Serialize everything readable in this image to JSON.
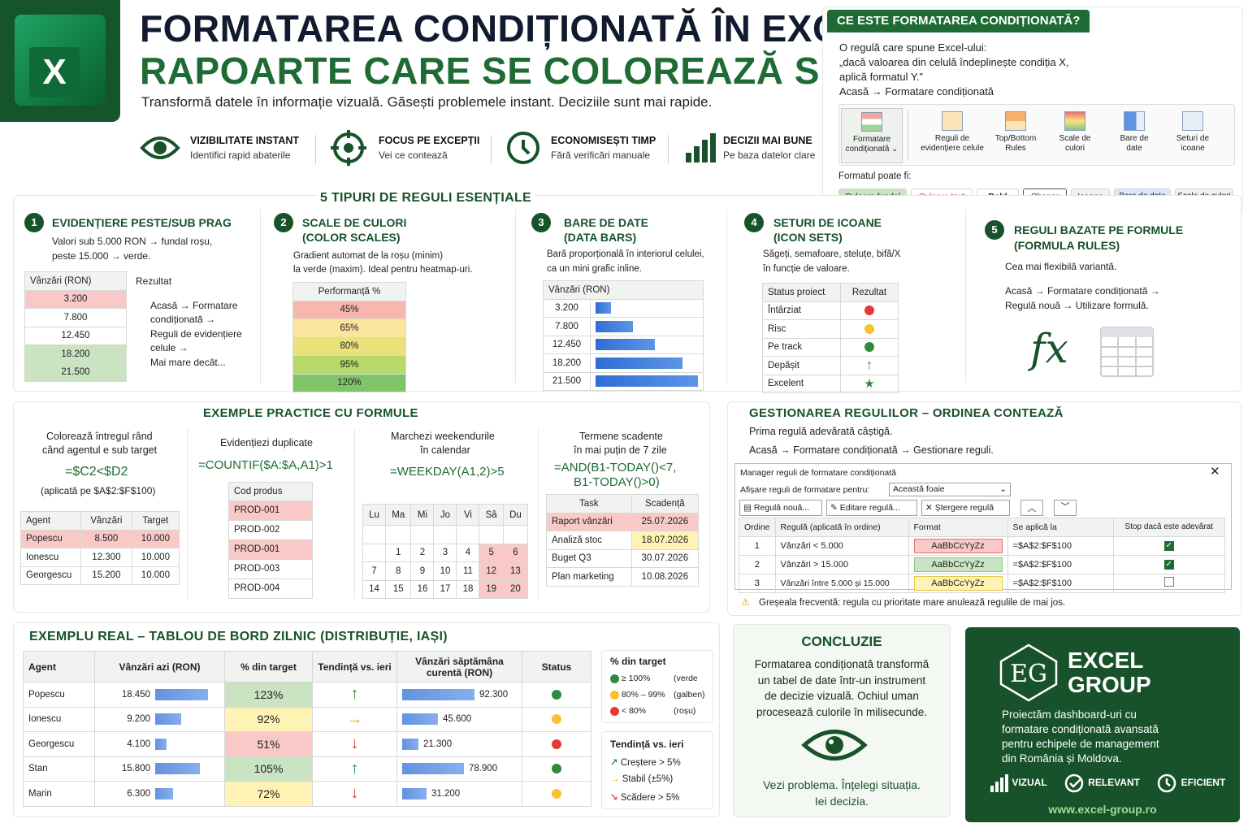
{
  "header": {
    "title_line1": "FORMATAREA CONDIȚIONATĂ ÎN EXCEL:",
    "title_line2": "RAPOARTE CARE SE COLOREAZĂ SINGURE",
    "subtitle": "Transformă datele în informație vizuală. Găsești problemele instant. Deciziile sunt mai rapide.",
    "excel_letter": "X"
  },
  "features": [
    {
      "title": "VIZIBILITATE INSTANT",
      "desc": "Identifici rapid abaterile",
      "icon": "eye-icon"
    },
    {
      "title": "FOCUS PE EXCEPȚII",
      "desc": "Vei ce contează",
      "icon": "target-icon"
    },
    {
      "title": "ECONOMISEȘTI TIMP",
      "desc": "Fără verificări manuale",
      "icon": "clock-icon"
    },
    {
      "title": "DECIZII MAI BUNE",
      "desc": "Pe baza datelor clare",
      "icon": "bar-chart-icon"
    }
  ],
  "what_is": {
    "heading": "CE ESTE FORMATAREA CONDIȚIONATĂ?",
    "line1": "O regulă care spune Excel-ului:",
    "line2": "„dacă valoarea din celulă îndeplinește condiția X,",
    "line3": "aplică formatul Y.”",
    "path": "Acasă → Formatare condiționată",
    "ribbon": [
      {
        "l1": "Formatare",
        "l2": "condiționată ⌄"
      },
      {
        "l1": "Reguli de",
        "l2": "evidențiere celule"
      },
      {
        "l1": "Top/Bottom",
        "l2": "Rules"
      },
      {
        "l1": "Scale de",
        "l2": "culori"
      },
      {
        "l1": "Bare de",
        "l2": "date"
      },
      {
        "l1": "Seturi de",
        "l2": "icoane"
      }
    ],
    "format_label": "Formatul poate fi:",
    "chips": [
      "Culoare fundal",
      "Culoare text",
      "Bold",
      "Chenar",
      "Icoane",
      "Bare de date",
      "Scale de culori"
    ]
  },
  "rules_section": {
    "heading": "5 TIPURI DE REGULI ESENȚIALE",
    "r1": {
      "num": "1",
      "title": "EVIDENȚIERE PESTE/SUB PRAG",
      "d1": "Valori sub 5.000 RON → fundal roșu,",
      "d2": "peste 15.000 → verde.",
      "col1": "Vânzări (RON)",
      "col2": "Rezultat",
      "values": [
        "3.200",
        "7.800",
        "12.450",
        "18.200",
        "21.500"
      ],
      "path1": "Acasă → Formatare",
      "path2": "condiționată →",
      "path3": "Reguli de evidențiere",
      "path4": "celule →",
      "path5": "Mai mare decât..."
    },
    "r2": {
      "num": "2",
      "title1": "SCALE DE CULORI",
      "title2": "(COLOR SCALES)",
      "d1": "Gradient automat de la roșu (minim)",
      "d2": "la verde (maxim). Ideal pentru heatmap-uri.",
      "col": "Performanță %",
      "values": [
        "45%",
        "65%",
        "80%",
        "95%",
        "120%"
      ]
    },
    "r3": {
      "num": "3",
      "title1": "BARE DE DATE",
      "title2": "(DATA BARS)",
      "d1": "Bară proporțională în interiorul celulei,",
      "d2": "ca un mini grafic inline.",
      "col": "Vânzări (RON)",
      "values": [
        "3.200",
        "7.800",
        "12.450",
        "18.200",
        "21.500"
      ],
      "bar_values": [
        3200,
        7800,
        12450,
        18200,
        21500
      ]
    },
    "r4": {
      "num": "4",
      "title1": "SETURI DE ICOANE",
      "title2": "(ICON SETS)",
      "d1": "Săgeți, semafoare, steluțe, bifă/X",
      "d2": "în funcție de valoare.",
      "col1": "Status proiect",
      "col2": "Rezultat",
      "rows": [
        "Întârziat",
        "Risc",
        "Pe track",
        "Depășit",
        "Excelent"
      ]
    },
    "r5": {
      "num": "5",
      "title1": "REGULI BAZATE PE FORMULE",
      "title2": "(FORMULA RULES)",
      "d1": "Cea mai flexibilă variantă.",
      "p1": "Acasă → Formatare condiționată →",
      "p2": "Regulă nouă → Utilizare formulă.",
      "fx": "fx"
    }
  },
  "examples": {
    "heading": "EXEMPLE PRACTICE CU FORMULE",
    "e1": {
      "d1": "Colorează întregul rând",
      "d2": "când agentul e sub target",
      "formula": "=$C2<$D2",
      "applied": "(aplicată pe $A$2:$F$100)",
      "cols": [
        "Agent",
        "Vânzări",
        "Target"
      ],
      "rows": [
        [
          "Popescu",
          "8.500",
          "10.000"
        ],
        [
          "Ionescu",
          "12.300",
          "10.000"
        ],
        [
          "Georgescu",
          "15.200",
          "10.000"
        ]
      ]
    },
    "e2": {
      "d1": "Evidențiezi duplicate",
      "formula": "=COUNTIF($A:$A,A1)>1",
      "col": "Cod produs",
      "rows": [
        "PROD-001",
        "PROD-002",
        "PROD-001",
        "PROD-003",
        "PROD-004"
      ]
    },
    "e3": {
      "d1": "Marchezi weekendurile",
      "d2": "în calendar",
      "formula": "=WEEKDAY(A1,2)>5",
      "days": [
        "Lu",
        "Ma",
        "Mi",
        "Jo",
        "Vi",
        "Sâ",
        "Du"
      ],
      "weeks": [
        [
          "",
          "",
          "",
          "",
          "",
          "",
          ""
        ],
        [
          "",
          "1",
          "2",
          "3",
          "4",
          "5",
          "6"
        ],
        [
          "7",
          "8",
          "9",
          "10",
          "11",
          "12",
          "13"
        ],
        [
          "14",
          "15",
          "16",
          "17",
          "18",
          "19",
          "20"
        ]
      ]
    },
    "e4": {
      "d1": "Termene scadente",
      "d2": "în mai puțin de 7 zile",
      "f1": "=AND(B1-TODAY()<7,",
      "f2": "B1-TODAY()>0)",
      "cols": [
        "Task",
        "Scadență"
      ],
      "rows": [
        [
          "Raport vânzări",
          "25.07.2026"
        ],
        [
          "Analiză stoc",
          "18.07.2026"
        ],
        [
          "Buget Q3",
          "30.07.2026"
        ],
        [
          "Plan marketing",
          "10.08.2026"
        ]
      ]
    }
  },
  "manage": {
    "heading": "GESTIONAREA REGULILOR – ORDINEA CONTEAZĂ",
    "d1": "Prima regulă adevărată câștigă.",
    "d2": "Acasă → Formatare condiționată → Gestionare reguli.",
    "dialog_title": "Manager reguli de formatare condiționată",
    "show_label": "Afișare reguli de formatare pentru:",
    "show_value": "Această foaie",
    "btn_new": "Regulă nouă...",
    "btn_edit": "Editare regulă...",
    "btn_delete": "Ștergere regulă",
    "cols": [
      "Ordine",
      "Regulă (aplicată în ordine)",
      "Format",
      "Se aplică la",
      "Stop dacă este adevărat"
    ],
    "rows": [
      [
        "1",
        "Vânzări < 5.000",
        "AaBbCcYyZz",
        "=$A$2:$F$100"
      ],
      [
        "2",
        "Vânzări > 15.000",
        "AaBbCcYyZz",
        "=$A$2:$F$100"
      ],
      [
        "3",
        "Vânzări între 5.000 și 15.000",
        "AaBbCcYyZz",
        "=$A$2:$F$100"
      ]
    ],
    "warning": "Greșeala frecventă: regula cu prioritate mare anulează regulile de mai jos."
  },
  "dashboard": {
    "heading": "EXEMPLU REAL – TABLOU DE BORD ZILNIC (DISTRIBUȚIE, IAȘI)",
    "cols": [
      "Agent",
      "Vânzări azi (RON)",
      "% din target",
      "Tendință vs. ieri",
      "Vânzări săptămâna curentă (RON)",
      "Status"
    ],
    "rows": [
      {
        "agent": "Popescu",
        "today": "18.450",
        "today_v": 18450,
        "pct": "123%",
        "trend": "up",
        "week": "92.300",
        "week_v": 92300,
        "status": "green"
      },
      {
        "agent": "Ionescu",
        "today": "9.200",
        "today_v": 9200,
        "pct": "92%",
        "trend": "right",
        "week": "45.600",
        "week_v": 45600,
        "status": "yellow"
      },
      {
        "agent": "Georgescu",
        "today": "4.100",
        "today_v": 4100,
        "pct": "51%",
        "trend": "down",
        "week": "21.300",
        "week_v": 21300,
        "status": "red"
      },
      {
        "agent": "Stan",
        "today": "15.800",
        "today_v": 15800,
        "pct": "105%",
        "trend": "up",
        "week": "78.900",
        "week_v": 78900,
        "status": "green"
      },
      {
        "agent": "Marin",
        "today": "6.300",
        "today_v": 6300,
        "pct": "72%",
        "trend": "down",
        "week": "31.200",
        "week_v": 31200,
        "status": "yellow"
      }
    ],
    "legend1_title": "% din target",
    "legend1": [
      [
        "≥ 100%",
        "(verde"
      ],
      [
        "80% – 99%",
        "(galben)"
      ],
      [
        "< 80%",
        "(roșu)"
      ]
    ],
    "legend2_title": "Tendință vs. ieri",
    "legend2": [
      "Creștere > 5%",
      "Stabil (±5%)",
      "Scădere > 5%"
    ]
  },
  "conclusion": {
    "heading": "CONCLUZIE",
    "l1": "Formatarea condiționată transformă",
    "l2": "un tabel de date într-un instrument",
    "l3": "de decizie vizuală. Ochiul uman",
    "l4": "procesează culorile în milisecunde.",
    "c1": "Vezi problema. Înțelegi situația.",
    "c2": "Iei decizia."
  },
  "brand": {
    "mono": "EG",
    "name1": "EXCEL",
    "name2": "GROUP",
    "l1": "Proiectăm dashboard-uri cu",
    "l2": "formatare condiționată avansată",
    "l3": "pentru echipele de management",
    "l4": "din România și Moldova.",
    "tags": [
      "VIZUAL",
      "RELEVANT",
      "EFICIENT"
    ],
    "url": "www.excel-group.ro"
  },
  "colors": {
    "accent": "#1e6b34",
    "navy": "#111a2e",
    "red_fill": "#f8c9c6",
    "green_fill": "#c9e3c3",
    "yellow_fill": "#fff2b5",
    "bar_blue": "#2f6ed4"
  }
}
